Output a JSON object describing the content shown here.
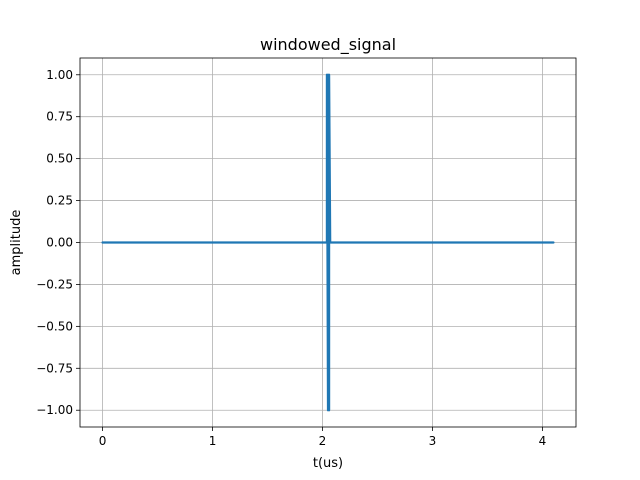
{
  "chart_data": {
    "type": "line",
    "title": "windowed_signal",
    "xlabel": "t(us)",
    "ylabel": "amplitude",
    "xlim": [
      -0.205,
      4.305
    ],
    "ylim": [
      -1.1,
      1.1
    ],
    "x_ticks": [
      0,
      1,
      2,
      3,
      4
    ],
    "x_tick_labels": [
      "0",
      "1",
      "2",
      "3",
      "4"
    ],
    "y_ticks": [
      -1.0,
      -0.75,
      -0.5,
      -0.25,
      0.0,
      0.25,
      0.5,
      0.75,
      1.0
    ],
    "y_tick_labels": [
      "−1.00",
      "−0.75",
      "−0.50",
      "−0.25",
      "0.00",
      "0.25",
      "0.50",
      "0.75",
      "1.00"
    ],
    "grid": true,
    "series": [
      {
        "color": "#1f77b4",
        "x": [
          0,
          2.03,
          2.04,
          2.04,
          2.05,
          2.05,
          2.06,
          2.06,
          2.07,
          4.1
        ],
        "y": [
          0,
          0,
          0,
          1.0,
          -1.0,
          1.0,
          -1.0,
          1.0,
          0,
          0
        ]
      }
    ]
  }
}
